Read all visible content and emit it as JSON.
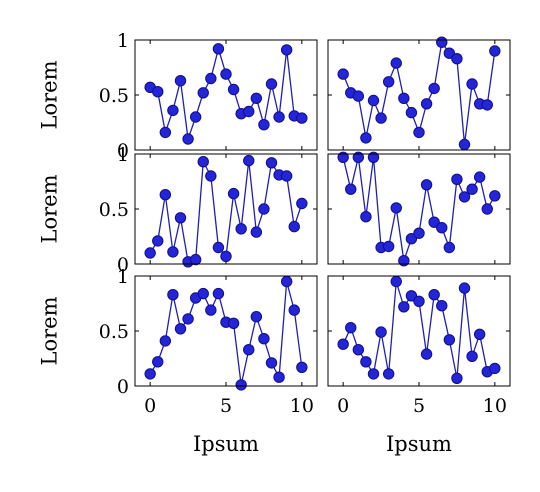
{
  "colors": {
    "series": "#1f1fb4",
    "marker_fill": "#2424d9",
    "marker_stroke": "#10108a",
    "frame": "#000000"
  },
  "chart_data": [
    {
      "type": "line",
      "row": 0,
      "col": 0,
      "xlim": [
        -1,
        11
      ],
      "ylim": [
        0,
        1
      ],
      "xticks": [
        0,
        5,
        10
      ],
      "yticks": [
        0,
        0.5,
        1
      ],
      "ytick_labels": [
        "0",
        "0.5",
        "1"
      ],
      "xlabel": "",
      "ylabel": "Lorem",
      "markers": true,
      "series": [
        {
          "x": [
            0,
            0.5,
            1,
            1.5,
            2,
            2.5,
            3,
            3.5,
            4,
            4.5,
            5,
            5.5,
            6,
            6.5,
            7,
            7.5,
            8,
            8.5,
            9,
            9.5,
            10
          ],
          "y": [
            0.57,
            0.53,
            0.16,
            0.36,
            0.63,
            0.1,
            0.3,
            0.52,
            0.65,
            0.92,
            0.69,
            0.55,
            0.33,
            0.35,
            0.47,
            0.23,
            0.6,
            0.3,
            0.91,
            0.31,
            0.29
          ]
        }
      ]
    },
    {
      "type": "line",
      "row": 0,
      "col": 1,
      "xlim": [
        -1,
        11
      ],
      "ylim": [
        0,
        1
      ],
      "xticks": [
        0,
        5,
        10
      ],
      "yticks": [
        0,
        0.5,
        1
      ],
      "ytick_labels": [],
      "xlabel": "",
      "ylabel": "",
      "markers": true,
      "series": [
        {
          "x": [
            0,
            0.5,
            1,
            1.5,
            2,
            2.5,
            3,
            3.5,
            4,
            4.5,
            5,
            5.5,
            6,
            6.5,
            7,
            7.5,
            8,
            8.5,
            9,
            9.5,
            10
          ],
          "y": [
            0.69,
            0.52,
            0.49,
            0.11,
            0.45,
            0.29,
            0.62,
            0.79,
            0.47,
            0.34,
            0.16,
            0.42,
            0.56,
            0.98,
            0.88,
            0.83,
            0.05,
            0.6,
            0.42,
            0.41,
            0.9
          ]
        }
      ]
    },
    {
      "type": "line",
      "row": 1,
      "col": 0,
      "xlim": [
        -1,
        11
      ],
      "ylim": [
        0,
        1
      ],
      "xticks": [
        0,
        5,
        10
      ],
      "yticks": [
        0,
        0.5,
        1
      ],
      "ytick_labels": [
        "0",
        "0.5",
        "1"
      ],
      "xlabel": "",
      "ylabel": "Lorem",
      "markers": true,
      "series": [
        {
          "x": [
            0,
            0.5,
            1,
            1.5,
            2,
            2.5,
            3,
            3.5,
            4,
            4.5,
            5,
            5.5,
            6,
            6.5,
            7,
            7.5,
            8,
            8.5,
            9,
            9.5,
            10
          ],
          "y": [
            0.1,
            0.21,
            0.63,
            0.11,
            0.42,
            0.02,
            0.04,
            0.93,
            0.8,
            0.15,
            0.07,
            0.64,
            0.32,
            0.94,
            0.29,
            0.5,
            0.92,
            0.81,
            0.8,
            0.34,
            0.55
          ]
        }
      ]
    },
    {
      "type": "line",
      "row": 1,
      "col": 1,
      "xlim": [
        -1,
        11
      ],
      "ylim": [
        0,
        1
      ],
      "xticks": [
        0,
        5,
        10
      ],
      "yticks": [
        0,
        0.5,
        1
      ],
      "ytick_labels": [],
      "xlabel": "",
      "ylabel": "",
      "markers": true,
      "series": [
        {
          "x": [
            0,
            0.5,
            1,
            1.5,
            2,
            2.5,
            3,
            3.5,
            4,
            4.5,
            5,
            5.5,
            6,
            6.5,
            7,
            7.5,
            8,
            8.5,
            9,
            9.5,
            10
          ],
          "y": [
            0.97,
            0.68,
            0.97,
            0.43,
            0.97,
            0.15,
            0.16,
            0.51,
            0.03,
            0.23,
            0.28,
            0.72,
            0.38,
            0.33,
            0.15,
            0.77,
            0.61,
            0.68,
            0.79,
            0.5,
            0.62
          ]
        }
      ]
    },
    {
      "type": "line",
      "row": 2,
      "col": 0,
      "xlim": [
        -1,
        11
      ],
      "ylim": [
        0,
        1
      ],
      "xticks": [
        0,
        5,
        10
      ],
      "xtick_labels": [
        "0",
        "5",
        "10"
      ],
      "yticks": [
        0,
        0.5,
        1
      ],
      "ytick_labels": [
        "0",
        "0.5",
        "1"
      ],
      "xlabel": "Ipsum",
      "ylabel": "Lorem",
      "markers": true,
      "series": [
        {
          "x": [
            0,
            0.5,
            1,
            1.5,
            2,
            2.5,
            3,
            3.5,
            4,
            4.5,
            5,
            5.5,
            6,
            6.5,
            7,
            7.5,
            8,
            8.5,
            9,
            9.5,
            10
          ],
          "y": [
            0.11,
            0.22,
            0.41,
            0.83,
            0.52,
            0.61,
            0.8,
            0.84,
            0.69,
            0.84,
            0.58,
            0.57,
            0.01,
            0.33,
            0.63,
            0.43,
            0.21,
            0.08,
            0.95,
            0.69,
            0.17
          ]
        }
      ]
    },
    {
      "type": "line",
      "row": 2,
      "col": 1,
      "xlim": [
        -1,
        11
      ],
      "ylim": [
        0,
        1
      ],
      "xticks": [
        0,
        5,
        10
      ],
      "xtick_labels": [
        "0",
        "5",
        "10"
      ],
      "yticks": [
        0,
        0.5,
        1
      ],
      "ytick_labels": [],
      "xlabel": "Ipsum",
      "ylabel": "",
      "markers": true,
      "series": [
        {
          "x": [
            0,
            0.5,
            1,
            1.5,
            2,
            2.5,
            3,
            3.5,
            4,
            4.5,
            5,
            5.5,
            6,
            6.5,
            7,
            7.5,
            8,
            8.5,
            9,
            9.5,
            10
          ],
          "y": [
            0.38,
            0.53,
            0.33,
            0.22,
            0.11,
            0.49,
            0.11,
            0.95,
            0.72,
            0.82,
            0.77,
            0.29,
            0.83,
            0.73,
            0.42,
            0.07,
            0.89,
            0.27,
            0.47,
            0.13,
            0.16
          ]
        }
      ]
    }
  ]
}
